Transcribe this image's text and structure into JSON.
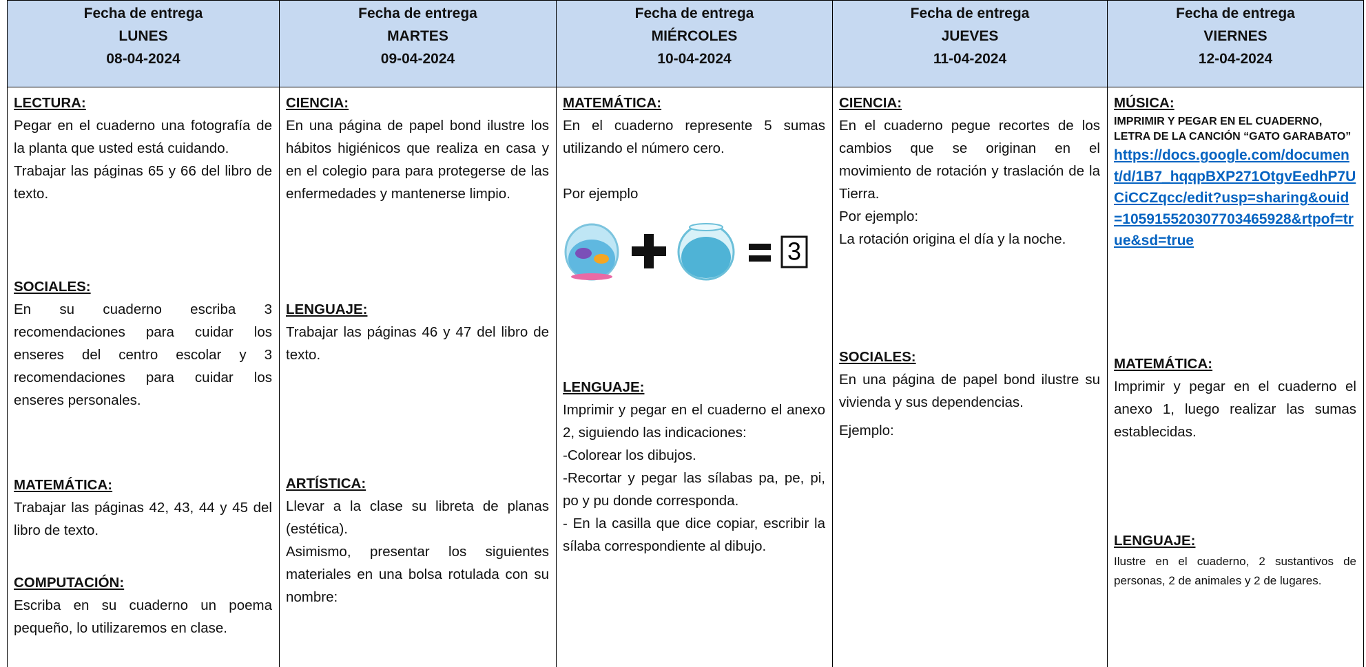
{
  "table": {
    "columns": [
      {
        "header": {
          "label": "Fecha de entrega",
          "day": "LUNES",
          "date": "08-04-2024"
        },
        "sections": [
          {
            "title": "LECTURA:",
            "paragraphs": [
              "Pegar en el cuaderno una fotografía de la planta que usted está cuidando.",
              "Trabajar las páginas 65 y 66 del libro de texto."
            ]
          },
          {
            "title": "SOCIALES:",
            "paragraphs": [
              "En su cuaderno escriba 3 recomendaciones para cuidar los enseres del centro escolar y 3 recomendaciones para cuidar los enseres personales."
            ]
          },
          {
            "title": "MATEMÁTICA:",
            "paragraphs": [
              "Trabajar las páginas 42, 43, 44 y 45 del libro de texto."
            ]
          },
          {
            "title": "COMPUTACIÓN:",
            "paragraphs": [
              "Escriba en su cuaderno un poema pequeño, lo utilizaremos en clase."
            ]
          }
        ]
      },
      {
        "header": {
          "label": "Fecha de entrega",
          "day": "MARTES",
          "date": "09-04-2024"
        },
        "sections": [
          {
            "title": "CIENCIA:",
            "paragraphs": [
              "En una página de papel bond ilustre los hábitos higiénicos que realiza en casa y en el colegio para para protegerse de las enfermedades y mantenerse limpio."
            ]
          },
          {
            "title": "LENGUAJE:",
            "paragraphs": [
              "Trabajar las páginas 46 y 47 del libro de texto."
            ]
          },
          {
            "title": "ARTÍSTICA:",
            "paragraphs": [
              "Llevar a la clase su libreta de planas (estética).",
              "Asimismo, presentar los siguientes materiales en una bolsa rotulada con su nombre:"
            ]
          }
        ]
      },
      {
        "header": {
          "label": "Fecha de entrega",
          "day": "MIÉRCOLES",
          "date": "10-04-2024"
        },
        "sections": [
          {
            "title": "MATEMÁTICA:",
            "paragraphs": [
              "En el cuaderno represente 5 sumas utilizando el número cero.",
              "Por ejemplo"
            ],
            "example_result": "3"
          },
          {
            "title": "LENGUAJE:",
            "paragraphs": [
              "Imprimir y pegar en el cuaderno el anexo 2, siguiendo las indicaciones:",
              "-Colorear los dibujos.",
              "-Recortar y pegar las sílabas pa, pe, pi, po y pu donde corresponda.",
              "- En la casilla que dice copiar, escribir la sílaba correspondiente al dibujo."
            ]
          }
        ]
      },
      {
        "header": {
          "label": "Fecha de entrega",
          "day": "JUEVES",
          "date": "11-04-2024"
        },
        "sections": [
          {
            "title": "CIENCIA:",
            "paragraphs": [
              "En el cuaderno pegue recortes de los cambios que se originan en el movimiento de rotación y traslación de la Tierra.",
              "Por ejemplo:",
              "La rotación origina el día y la noche."
            ]
          },
          {
            "title": "SOCIALES:",
            "paragraphs": [
              "En una página de papel bond ilustre su vivienda y sus dependencias.",
              "Ejemplo:"
            ]
          }
        ]
      },
      {
        "header": {
          "label": "Fecha de entrega",
          "day": "VIERNES",
          "date": "12-04-2024"
        },
        "sections": [
          {
            "title": "MÚSICA:",
            "paragraphs": [
              "IMPRIMIR Y PEGAR EN EL CUADERNO, LETRA DE LA CANCIÓN “GATO GARABATO”"
            ],
            "link": "https://docs.google.com/document/d/1B7_hqqpBXP271OtgvEedhP7UCiCCZqcc/edit?usp=sharing&ouid=105915520307703465928&rtpof=true&sd=true"
          },
          {
            "title": "MATEMÁTICA:",
            "paragraphs": [
              "Imprimir y pegar en el cuaderno el anexo 1, luego realizar las sumas establecidas."
            ]
          },
          {
            "title": "LENGUAJE:",
            "paragraphs": [
              "Ilustre en el cuaderno, 2 sustantivos de personas, 2 de animales y 2 de lugares."
            ]
          }
        ]
      }
    ]
  }
}
